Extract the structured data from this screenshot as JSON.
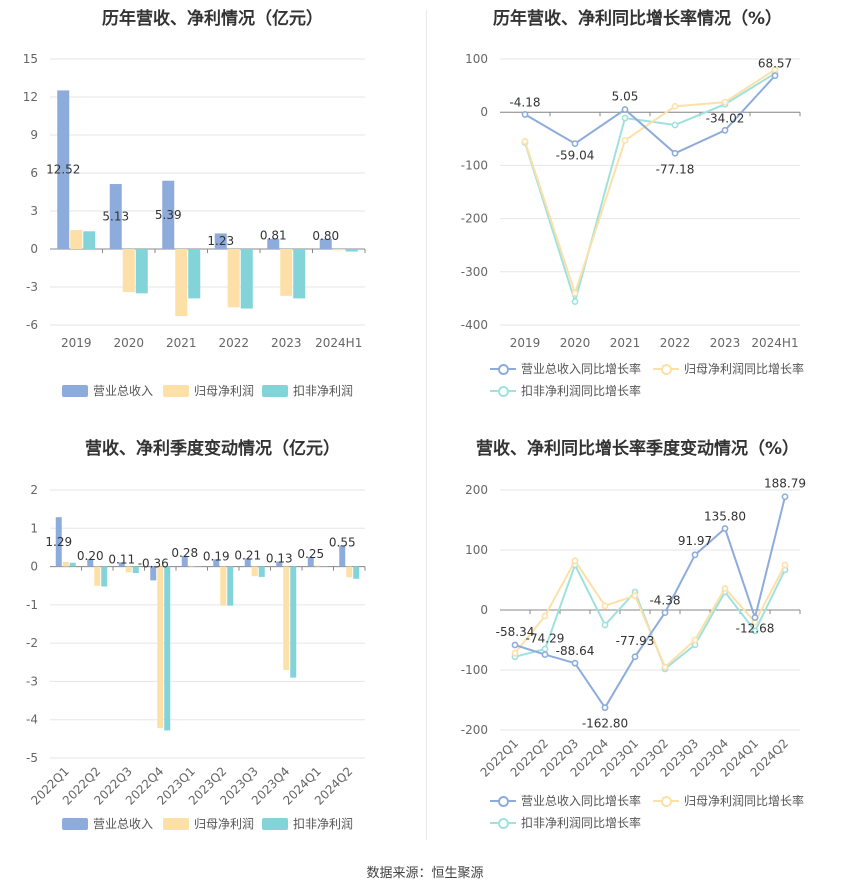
{
  "colors": {
    "revenue": "#8eacdb",
    "net_profit": "#fde0a8",
    "deducted": "#82d4d8",
    "revenue_line": "#8eacdb",
    "net_profit_line": "#fde0a8",
    "deducted_line": "#9fe2dd"
  },
  "source": "数据来源：恒生聚源",
  "chart_data": [
    {
      "type": "bar",
      "title": "历年营收、净利情况（亿元）",
      "categories": [
        "2019",
        "2020",
        "2021",
        "2022",
        "2023",
        "2024H1"
      ],
      "ylim": [
        -6,
        15
      ],
      "yticks": [
        -6,
        -3,
        0,
        3,
        6,
        9,
        12,
        15
      ],
      "grid": true,
      "legend_position": "bottom",
      "series": [
        {
          "name": "营业总收入",
          "values": [
            12.52,
            5.13,
            5.39,
            1.23,
            0.81,
            0.8
          ],
          "labels": [
            "12.52",
            "5.13",
            "5.39",
            "1.23",
            "0.81",
            "0.80"
          ]
        },
        {
          "name": "归母净利润",
          "values": [
            1.5,
            -3.4,
            -5.3,
            -4.6,
            -3.7,
            -0.1
          ]
        },
        {
          "name": "扣非净利润",
          "values": [
            1.4,
            -3.5,
            -3.9,
            -4.7,
            -3.9,
            -0.2
          ]
        }
      ]
    },
    {
      "type": "line",
      "title": "历年营收、净利同比增长率情况（%）",
      "categories": [
        "2019",
        "2020",
        "2021",
        "2022",
        "2023",
        "2024H1"
      ],
      "ylim": [
        -400,
        100
      ],
      "yticks": [
        -400,
        -300,
        -200,
        -100,
        0,
        100
      ],
      "grid": true,
      "legend_position": "bottom",
      "series": [
        {
          "name": "营业总收入同比增长率",
          "values": [
            -4.18,
            -59.04,
            5.05,
            -77.18,
            -34.02,
            68.57
          ],
          "labels": [
            "-4.18",
            "-59.04",
            "5.05",
            "-77.18",
            "-34.02",
            "68.57"
          ]
        },
        {
          "name": "归母净利润同比增长率",
          "values": [
            -55,
            -340,
            -53,
            11,
            19,
            80
          ]
        },
        {
          "name": "扣非净利润同比增长率",
          "values": [
            -57,
            -356,
            -11,
            -24,
            15,
            73
          ]
        }
      ]
    },
    {
      "type": "bar",
      "title": "营收、净利季度变动情况（亿元）",
      "categories": [
        "2022Q1",
        "2022Q2",
        "2022Q3",
        "2022Q4",
        "2023Q1",
        "2023Q2",
        "2023Q3",
        "2023Q4",
        "2024Q1",
        "2024Q2"
      ],
      "ylim": [
        -5,
        2
      ],
      "yticks": [
        -5,
        -4,
        -3,
        -2,
        -1,
        0,
        1,
        2
      ],
      "grid": true,
      "legend_position": "bottom",
      "series": [
        {
          "name": "营业总收入",
          "values": [
            1.29,
            0.2,
            0.11,
            -0.36,
            0.28,
            0.19,
            0.21,
            0.13,
            0.25,
            0.55
          ],
          "labels": [
            "1.29",
            "0.20",
            "0.11",
            "-0.36",
            "0.28",
            "0.19",
            "0.21",
            "0.13",
            "0.25",
            "0.55"
          ]
        },
        {
          "name": "归母净利润",
          "values": [
            0.12,
            -0.5,
            -0.15,
            -4.22,
            0.02,
            -1.02,
            -0.25,
            -2.7,
            0.03,
            -0.28
          ]
        },
        {
          "name": "扣非净利润",
          "values": [
            0.1,
            -0.52,
            -0.17,
            -4.28,
            0.01,
            -1.02,
            -0.27,
            -2.9,
            0.01,
            -0.32
          ]
        }
      ]
    },
    {
      "type": "line",
      "title": "营收、净利同比增长率季度变动情况（%）",
      "categories": [
        "2022Q1",
        "2022Q2",
        "2022Q3",
        "2022Q4",
        "2023Q1",
        "2023Q2",
        "2023Q3",
        "2023Q4",
        "2024Q1",
        "2024Q2"
      ],
      "ylim": [
        -200,
        200
      ],
      "yticks": [
        -200,
        -100,
        0,
        100,
        200
      ],
      "grid": true,
      "legend_position": "bottom",
      "series": [
        {
          "name": "营业总收入同比增长率",
          "values": [
            -58.34,
            -74.29,
            -88.64,
            -162.8,
            -77.93,
            -4.38,
            91.97,
            135.8,
            -12.68,
            188.79
          ],
          "labels": [
            "-58.34",
            "-74.29",
            "-88.64",
            "-162.80",
            "-77.93",
            "-4.38",
            "91.97",
            "135.80",
            "-12.68",
            "188.79"
          ]
        },
        {
          "name": "归母净利润同比增长率",
          "values": [
            -72,
            -10,
            82,
            7,
            24,
            -95,
            -50,
            36,
            -20,
            75
          ]
        },
        {
          "name": "扣非净利润同比增长率",
          "values": [
            -78,
            -65,
            75,
            -25,
            30,
            -98,
            -58,
            30,
            -35,
            67
          ]
        }
      ]
    }
  ]
}
